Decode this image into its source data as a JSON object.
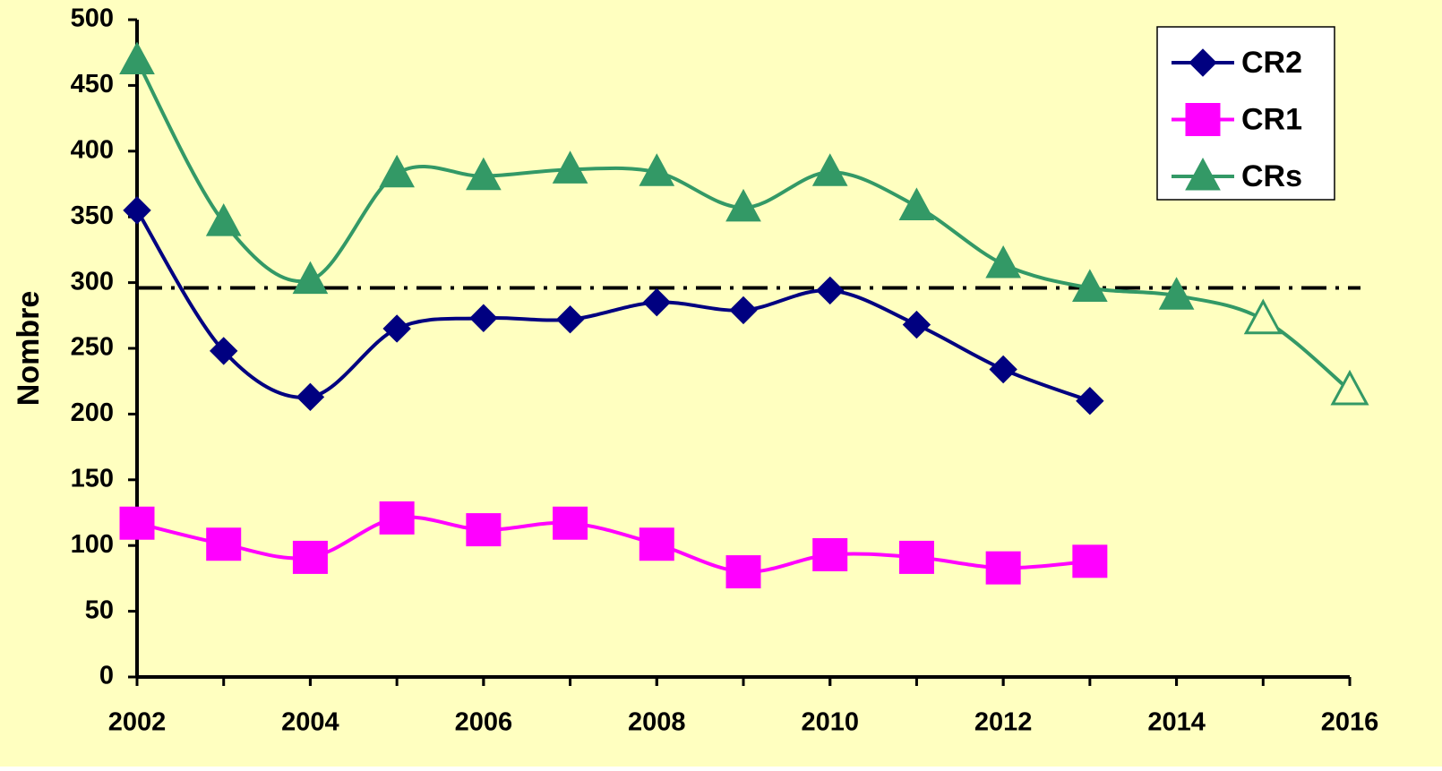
{
  "chart_data": {
    "type": "line",
    "y_label": "Nombre",
    "x": [
      2002,
      2003,
      2004,
      2005,
      2006,
      2007,
      2008,
      2009,
      2010,
      2011,
      2012,
      2013,
      2014,
      2015,
      2016
    ],
    "series": [
      {
        "name": "CR2",
        "color": "#000080",
        "marker": "diamond",
        "values": [
          355,
          248,
          213,
          265,
          273,
          272,
          285,
          279,
          294,
          268,
          234,
          210,
          null,
          null,
          null
        ]
      },
      {
        "name": "CR1",
        "color": "#ff00ff",
        "marker": "square",
        "values": [
          117,
          101,
          91,
          121,
          112,
          117,
          101,
          80,
          93,
          91,
          83,
          88,
          null,
          null,
          null
        ]
      },
      {
        "name": "CRs",
        "color": "#339966",
        "marker": "triangle",
        "open_markers": [
          13,
          14
        ],
        "values": [
          469,
          346,
          302,
          383,
          381,
          386,
          384,
          357,
          384,
          358,
          314,
          296,
          290,
          272,
          218
        ]
      }
    ],
    "reference_line": 296,
    "xlim": [
      2002,
      2016
    ],
    "xticks": [
      2002,
      2004,
      2006,
      2008,
      2010,
      2012,
      2014,
      2016
    ],
    "ylim": [
      0,
      500
    ],
    "yticks": [
      0,
      50,
      100,
      150,
      200,
      250,
      300,
      350,
      400,
      450,
      500
    ],
    "smooth": true,
    "legend": "top-right",
    "background": "#ffffc0"
  }
}
